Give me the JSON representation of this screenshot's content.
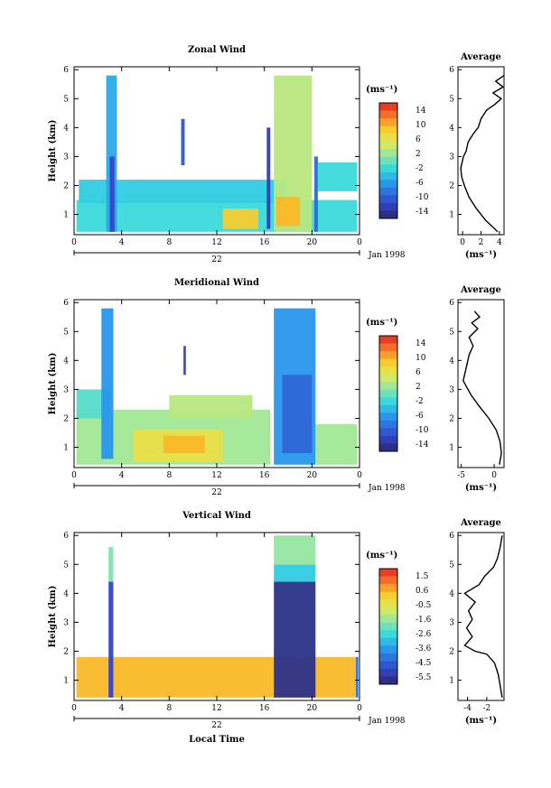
{
  "figure": {
    "x_axis_label": "Local Time",
    "date_label": "Jan 1998",
    "day_label": "22"
  },
  "chart_data": [
    {
      "type": "heatmap",
      "title": "Zonal Wind",
      "ylabel": "Height (km)",
      "xlabel": "",
      "x_ticks": [
        "0",
        "4",
        "8",
        "12",
        "16",
        "20",
        "0"
      ],
      "xlim": [
        0,
        24
      ],
      "y_ticks": [
        "1",
        "2",
        "3",
        "4",
        "5",
        "6"
      ],
      "ylim": [
        0.3,
        6.1
      ],
      "colorbar": {
        "unit": "(ms⁻¹)",
        "min": -15,
        "max": 15,
        "ticks": [
          "14",
          "10",
          "6",
          "2",
          "-2",
          "-6",
          "-10",
          "-14"
        ]
      },
      "regions": [
        {
          "x": [
            0.2,
            23.8
          ],
          "y": [
            0.4,
            1.5
          ],
          "value": -2
        },
        {
          "x": [
            0.4,
            18.0
          ],
          "y": [
            1.4,
            2.2
          ],
          "value": -3
        },
        {
          "x": [
            2.7,
            3.6
          ],
          "y": [
            0.4,
            5.8
          ],
          "value": -5
        },
        {
          "x": [
            3.0,
            3.4
          ],
          "y": [
            0.4,
            3.0
          ],
          "value": -11
        },
        {
          "x": [
            12.5,
            15.5
          ],
          "y": [
            0.5,
            1.2
          ],
          "value": 8
        },
        {
          "x": [
            9.0,
            9.3
          ],
          "y": [
            2.7,
            4.3
          ],
          "value": -10
        },
        {
          "x": [
            16.2,
            16.5
          ],
          "y": [
            0.5,
            4.0
          ],
          "value": -12
        },
        {
          "x": [
            16.8,
            20.0
          ],
          "y": [
            0.4,
            5.8
          ],
          "value": 3
        },
        {
          "x": [
            17.0,
            19.0
          ],
          "y": [
            0.6,
            1.6
          ],
          "value": 9
        },
        {
          "x": [
            20.2,
            20.5
          ],
          "y": [
            0.4,
            3.0
          ],
          "value": -9
        },
        {
          "x": [
            20.5,
            23.8
          ],
          "y": [
            1.8,
            2.8
          ],
          "value": -2
        }
      ],
      "profile": {
        "title": "Average",
        "xlabel": "(ms⁻¹)",
        "x_ticks": [
          "0",
          "2",
          "4"
        ],
        "xlim": [
          -0.5,
          4.5
        ],
        "points": [
          [
            3.8,
            0.4
          ],
          [
            3.5,
            0.5
          ],
          [
            2.5,
            0.8
          ],
          [
            1.5,
            1.2
          ],
          [
            0.7,
            1.6
          ],
          [
            0.2,
            2.0
          ],
          [
            -0.1,
            2.3
          ],
          [
            -0.2,
            2.6
          ],
          [
            0.1,
            3.0
          ],
          [
            0.4,
            3.2
          ],
          [
            0.6,
            3.5
          ],
          [
            1.2,
            3.8
          ],
          [
            1.7,
            4.0
          ],
          [
            2.0,
            4.3
          ],
          [
            2.6,
            4.6
          ],
          [
            3.5,
            4.8
          ],
          [
            4.2,
            5.0
          ],
          [
            3.3,
            5.2
          ],
          [
            4.4,
            5.4
          ],
          [
            3.6,
            5.6
          ],
          [
            4.5,
            5.8
          ]
        ]
      }
    },
    {
      "type": "heatmap",
      "title": "Meridional Wind",
      "ylabel": "Height (km)",
      "xlabel": "",
      "x_ticks": [
        "0",
        "4",
        "8",
        "12",
        "16",
        "20",
        "0"
      ],
      "xlim": [
        0,
        24
      ],
      "y_ticks": [
        "1",
        "2",
        "3",
        "4",
        "5",
        "6"
      ],
      "ylim": [
        0.3,
        6.1
      ],
      "colorbar": {
        "unit": "(ms⁻¹)",
        "min": -15,
        "max": 15,
        "ticks": [
          "14",
          "10",
          "6",
          "2",
          "-2",
          "-6",
          "-10",
          "-14"
        ]
      },
      "regions": [
        {
          "x": [
            0.2,
            16.5
          ],
          "y": [
            0.4,
            2.3
          ],
          "value": 2
        },
        {
          "x": [
            0.2,
            3.0
          ],
          "y": [
            2.0,
            3.0
          ],
          "value": -1
        },
        {
          "x": [
            2.3,
            3.3
          ],
          "y": [
            0.6,
            5.8
          ],
          "value": -6
        },
        {
          "x": [
            5.0,
            12.5
          ],
          "y": [
            0.5,
            1.6
          ],
          "value": 6
        },
        {
          "x": [
            7.5,
            11.0
          ],
          "y": [
            0.8,
            1.4
          ],
          "value": 9
        },
        {
          "x": [
            8.0,
            15.0
          ],
          "y": [
            2.0,
            2.8
          ],
          "value": 3
        },
        {
          "x": [
            9.2,
            9.4
          ],
          "y": [
            3.5,
            4.5
          ],
          "value": -12
        },
        {
          "x": [
            16.8,
            20.3
          ],
          "y": [
            0.4,
            5.8
          ],
          "value": -6
        },
        {
          "x": [
            17.5,
            20.0
          ],
          "y": [
            0.8,
            3.5
          ],
          "value": -9
        },
        {
          "x": [
            20.3,
            23.8
          ],
          "y": [
            0.4,
            1.8
          ],
          "value": 2
        }
      ],
      "profile": {
        "title": "Average",
        "xlabel": "(ms⁻¹)",
        "x_ticks": [
          "-5",
          "0"
        ],
        "xlim": [
          -5.5,
          1.5
        ],
        "points": [
          [
            0.8,
            0.4
          ],
          [
            1.1,
            0.8
          ],
          [
            0.9,
            1.2
          ],
          [
            0.3,
            1.6
          ],
          [
            -0.8,
            2.0
          ],
          [
            -2.2,
            2.4
          ],
          [
            -3.5,
            2.8
          ],
          [
            -4.7,
            3.3
          ],
          [
            -4.2,
            3.8
          ],
          [
            -3.8,
            4.2
          ],
          [
            -3.2,
            4.5
          ],
          [
            -3.8,
            4.8
          ],
          [
            -2.5,
            5.1
          ],
          [
            -3.4,
            5.3
          ],
          [
            -2.2,
            5.5
          ],
          [
            -3.0,
            5.7
          ]
        ]
      }
    },
    {
      "type": "heatmap",
      "title": "Vertical Wind",
      "ylabel": "Height (km)",
      "xlabel": "",
      "x_ticks": [
        "0",
        "4",
        "8",
        "12",
        "16",
        "20",
        "0"
      ],
      "xlim": [
        0,
        24
      ],
      "y_ticks": [
        "1",
        "2",
        "3",
        "4",
        "5",
        "6"
      ],
      "ylim": [
        0.3,
        6.1
      ],
      "colorbar": {
        "unit": "(ms⁻¹)",
        "min": -6.0,
        "max": 2.0,
        "ticks": [
          "1.5",
          "0.6",
          "-0.5",
          "-1.6",
          "-2.6",
          "-3.6",
          "-4.5",
          "-5.5"
        ]
      },
      "regions": [
        {
          "x": [
            0.2,
            23.8
          ],
          "y": [
            0.4,
            1.8
          ],
          "value": 0.4
        },
        {
          "x": [
            2.9,
            3.3
          ],
          "y": [
            0.4,
            4.4
          ],
          "value": -5.0
        },
        {
          "x": [
            2.9,
            3.3
          ],
          "y": [
            4.4,
            5.6
          ],
          "value": -1.8
        },
        {
          "x": [
            16.8,
            20.3
          ],
          "y": [
            0.4,
            4.4
          ],
          "value": -5.7
        },
        {
          "x": [
            16.8,
            20.3
          ],
          "y": [
            4.4,
            5.0
          ],
          "value": -2.8
        },
        {
          "x": [
            16.8,
            20.3
          ],
          "y": [
            5.0,
            6.0
          ],
          "value": -1.6
        },
        {
          "x": [
            23.7,
            23.9
          ],
          "y": [
            0.4,
            1.8
          ],
          "value": -4.2
        }
      ],
      "profile": {
        "title": "Average",
        "xlabel": "(ms⁻¹)",
        "x_ticks": [
          "-4",
          "-2"
        ],
        "xlim": [
          -5.0,
          -0.2
        ],
        "points": [
          [
            -0.4,
            0.4
          ],
          [
            -0.6,
            0.8
          ],
          [
            -0.8,
            1.2
          ],
          [
            -1.2,
            1.6
          ],
          [
            -2.0,
            1.9
          ],
          [
            -3.2,
            2.0
          ],
          [
            -4.3,
            2.2
          ],
          [
            -3.5,
            2.5
          ],
          [
            -4.1,
            2.8
          ],
          [
            -3.5,
            3.1
          ],
          [
            -3.9,
            3.4
          ],
          [
            -3.2,
            3.7
          ],
          [
            -4.3,
            4.0
          ],
          [
            -2.8,
            4.3
          ],
          [
            -2.2,
            4.6
          ],
          [
            -1.3,
            4.9
          ],
          [
            -0.9,
            5.2
          ],
          [
            -0.6,
            5.6
          ],
          [
            -0.4,
            6.0
          ]
        ]
      }
    }
  ]
}
